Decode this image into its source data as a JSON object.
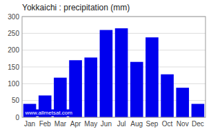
{
  "chart_data": {
    "type": "bar",
    "title": "Yokkaichi : precipitation (mm)",
    "categories": [
      "Jan",
      "Feb",
      "Mar",
      "Apr",
      "May",
      "Jun",
      "Jul",
      "Aug",
      "Sep",
      "Oct",
      "Nov",
      "Dec"
    ],
    "values": [
      40,
      65,
      118,
      170,
      178,
      260,
      265,
      165,
      238,
      128,
      88,
      40
    ],
    "color": "#0000ee",
    "ylim": [
      0,
      300
    ],
    "yticks": [
      0,
      50,
      100,
      150,
      200,
      250,
      300
    ],
    "grid": true,
    "annotations": [
      "www.allmetsat.com"
    ]
  }
}
